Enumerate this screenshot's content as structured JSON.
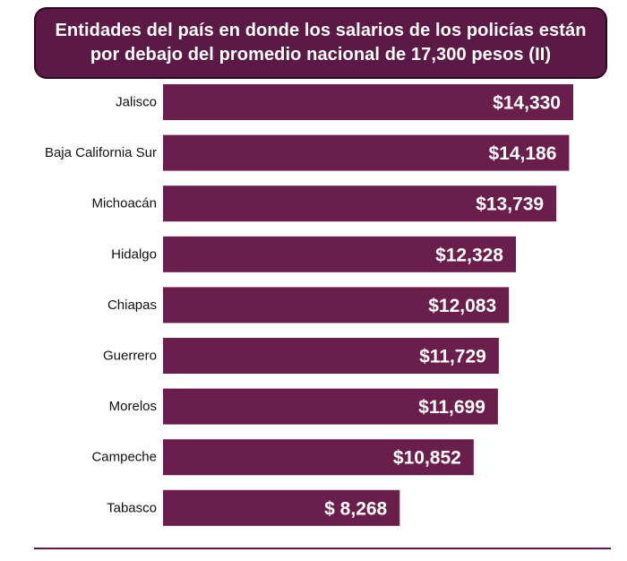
{
  "chart_data": {
    "type": "bar",
    "orientation": "horizontal",
    "title_lines": [
      "Entidades del país en donde los salarios de los policías están",
      "por debajo del promedio nacional de 17,300 pesos (II)"
    ],
    "categories": [
      "Jalisco",
      "Baja California Sur",
      "Michoacán",
      "Hidalgo",
      "Chiapas",
      "Guerrero",
      "Morelos",
      "Campeche",
      "Tabasco"
    ],
    "values": [
      14330,
      14186,
      13739,
      12328,
      12083,
      11729,
      11699,
      10852,
      8268
    ],
    "value_labels": [
      "$14,330",
      "$14,186",
      "$13,739",
      "$12,328",
      "$12,083",
      "$11,729",
      "$11,699",
      "$10,852",
      "$ 8,268"
    ],
    "xlim": [
      0,
      14330
    ],
    "bar_color": "#6a1e4c",
    "label_color": "#ffffff",
    "grid": false,
    "legend": false
  }
}
